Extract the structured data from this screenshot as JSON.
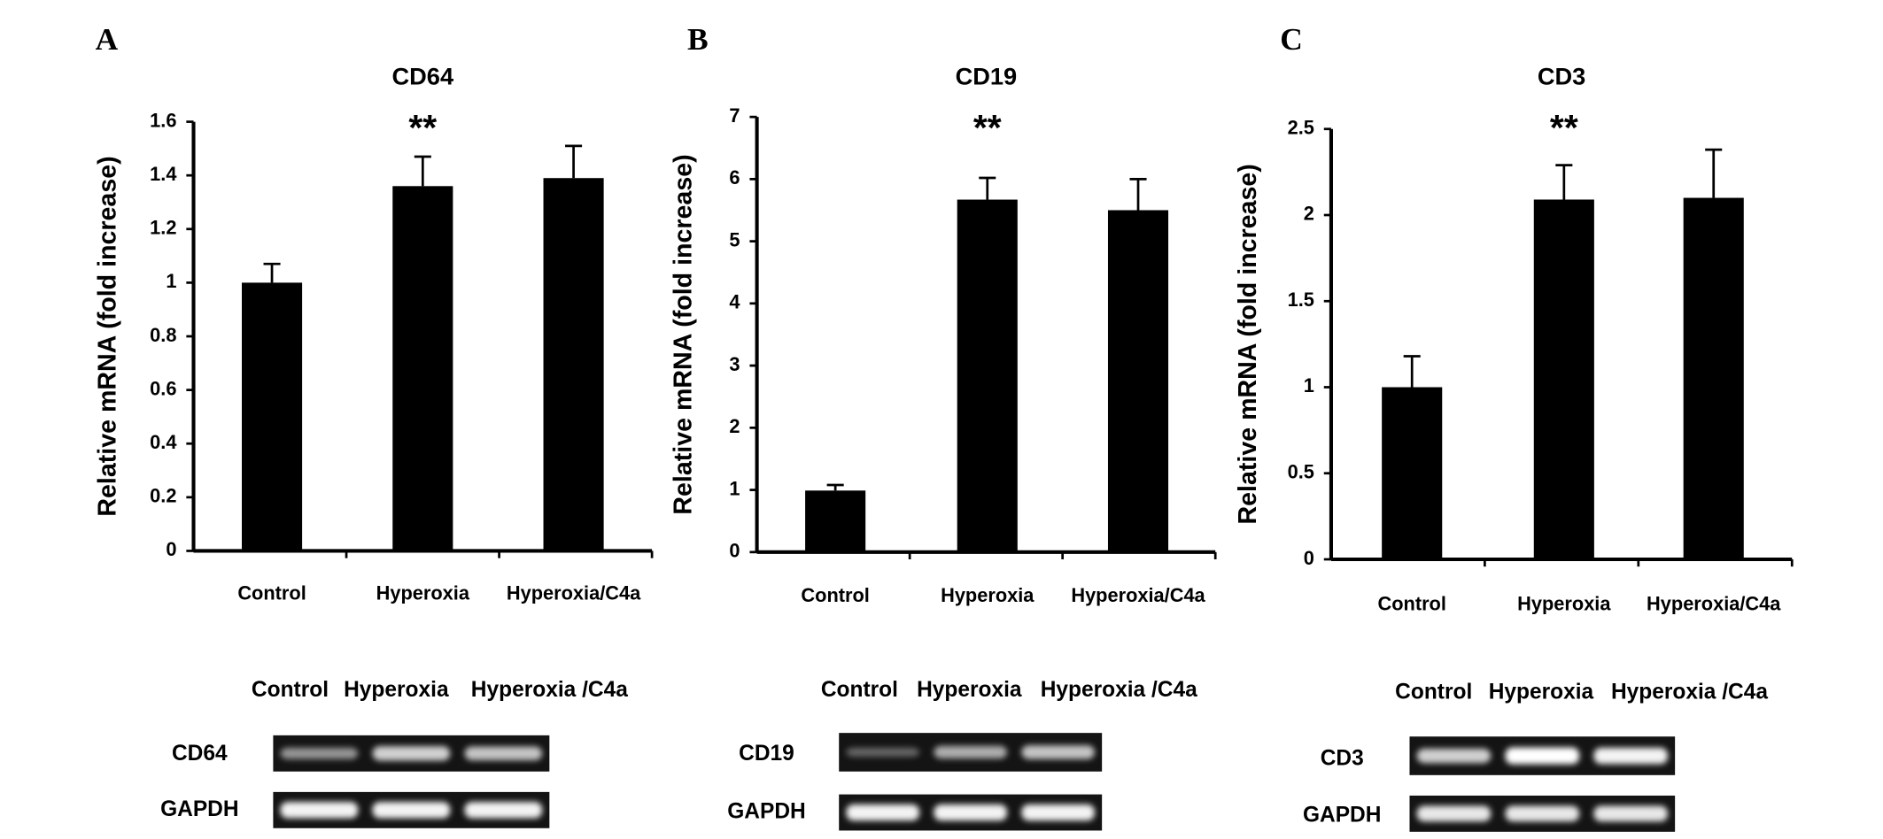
{
  "chart_data": [
    {
      "type": "bar",
      "panel": "A",
      "title": "CD64",
      "y_label": "Relative mRNA (fold increase)",
      "categories": [
        "Control",
        "Hyperoxia",
        "Hyperoxia/C4a"
      ],
      "values": [
        1,
        1.36,
        1.39
      ],
      "errors": [
        0.07,
        0.11,
        0.12
      ],
      "color": "#000000",
      "ylim": [
        0,
        1.6
      ],
      "yticks": [
        0,
        0.2,
        0.4,
        0.6,
        0.8,
        1,
        1.2,
        1.4,
        1.6
      ],
      "annotations": [
        {
          "category": 1,
          "text": "**"
        }
      ],
      "gel": {
        "lanes": [
          "Control",
          "Hyperoxia",
          "Hyperoxia /C4a"
        ],
        "rows": [
          "CD64",
          "GAPDH"
        ]
      }
    },
    {
      "type": "bar",
      "panel": "B",
      "title": "CD19",
      "y_label": "Relative mRNA (fold increase)",
      "categories": [
        "Control",
        "Hyperoxia",
        "Hyperoxia/C4a"
      ],
      "values": [
        0.99,
        5.67,
        5.5
      ],
      "errors": [
        0.09,
        0.35,
        0.5
      ],
      "color": "#000000",
      "ylim": [
        0,
        7
      ],
      "yticks": [
        0,
        1,
        2,
        3,
        4,
        5,
        6,
        7
      ],
      "annotations": [
        {
          "category": 1,
          "text": "**"
        }
      ],
      "gel": {
        "lanes": [
          "Control",
          "Hyperoxia",
          "Hyperoxia /C4a"
        ],
        "rows": [
          "CD19",
          "GAPDH"
        ]
      }
    },
    {
      "type": "bar",
      "panel": "C",
      "title": "CD3",
      "y_label": "Relative mRNA (fold increase)",
      "categories": [
        "Control",
        "Hyperoxia",
        "Hyperoxia/C4a"
      ],
      "values": [
        1,
        2.09,
        2.1
      ],
      "errors": [
        0.18,
        0.2,
        0.28
      ],
      "color": "#000000",
      "ylim": [
        0,
        2.5
      ],
      "yticks": [
        0,
        0.5,
        1,
        1.5,
        2,
        2.5
      ],
      "annotations": [
        {
          "category": 1,
          "text": "**"
        }
      ],
      "gel": {
        "lanes": [
          "Control",
          "Hyperoxia",
          "Hyperoxia /C4a"
        ],
        "rows": [
          "CD3",
          "GAPDH"
        ]
      }
    }
  ]
}
